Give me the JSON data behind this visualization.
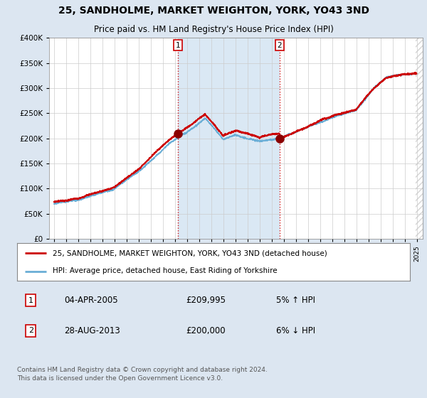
{
  "title": "25, SANDHOLME, MARKET WEIGHTON, YORK, YO43 3ND",
  "subtitle": "Price paid vs. HM Land Registry's House Price Index (HPI)",
  "legend_line1": "25, SANDHOLME, MARKET WEIGHTON, YORK, YO43 3ND (detached house)",
  "legend_line2": "HPI: Average price, detached house, East Riding of Yorkshire",
  "annotation1_label": "1",
  "annotation1_date": "04-APR-2005",
  "annotation1_price": "£209,995",
  "annotation1_hpi": "5% ↑ HPI",
  "annotation2_label": "2",
  "annotation2_date": "28-AUG-2013",
  "annotation2_price": "£200,000",
  "annotation2_hpi": "6% ↓ HPI",
  "footnote": "Contains HM Land Registry data © Crown copyright and database right 2024.\nThis data is licensed under the Open Government Licence v3.0.",
  "hpi_color": "#6aaed6",
  "price_color": "#cc0000",
  "vline_color": "#cc0000",
  "background_color": "#dce6f1",
  "plot_bg_color": "#ffffff",
  "shade_color": "#dae8f4",
  "ylim": [
    0,
    400000
  ],
  "yticks": [
    0,
    50000,
    100000,
    150000,
    200000,
    250000,
    300000,
    350000,
    400000
  ],
  "x_start_year": 1995,
  "x_end_year": 2025,
  "sale1_year": 2005.27,
  "sale2_year": 2013.65,
  "sale1_value": 209995,
  "sale2_value": 200000
}
